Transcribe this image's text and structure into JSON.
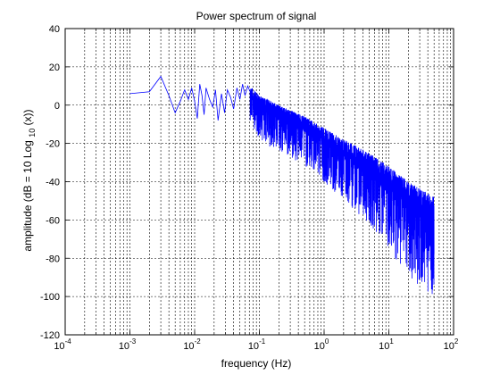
{
  "chart_data": {
    "type": "line",
    "title": "Power spectrum of signal",
    "xlabel": "frequency (Hz)",
    "ylabel_parts": [
      "amplitude (dB = 10 Log",
      "10",
      "(x))"
    ],
    "x_scale": "log",
    "xlim": [
      0.0001,
      100
    ],
    "ylim": [
      -120,
      40
    ],
    "x_ticks": [
      0.0001,
      0.001,
      0.01,
      0.1,
      1,
      10,
      100
    ],
    "x_tick_labels": [
      {
        "base": "10",
        "exp": "-4"
      },
      {
        "base": "10",
        "exp": "-3"
      },
      {
        "base": "10",
        "exp": "-2"
      },
      {
        "base": "10",
        "exp": "-1"
      },
      {
        "base": "10",
        "exp": "0"
      },
      {
        "base": "10",
        "exp": "1"
      },
      {
        "base": "10",
        "exp": "2"
      }
    ],
    "y_ticks": [
      -120,
      -100,
      -80,
      -60,
      -40,
      -20,
      0,
      20,
      40
    ],
    "y_tick_labels": [
      "-120",
      "-100",
      "-80",
      "-60",
      "-40",
      "-20",
      "0",
      "20",
      "40"
    ],
    "grid": true,
    "grid_style": "dashed",
    "line_color": "#0000ff",
    "series": [
      {
        "points": [
          [
            0.001,
            6
          ],
          [
            0.002,
            7
          ],
          [
            0.003,
            15
          ],
          [
            0.004,
            5
          ],
          [
            0.005,
            -4
          ],
          [
            0.006,
            2
          ],
          [
            0.007,
            8
          ],
          [
            0.008,
            3
          ],
          [
            0.009,
            9
          ],
          [
            0.01,
            2
          ],
          [
            0.011,
            -7
          ],
          [
            0.012,
            11
          ],
          [
            0.013,
            5
          ],
          [
            0.014,
            -5
          ],
          [
            0.015,
            9
          ],
          [
            0.017,
            3
          ],
          [
            0.019,
            -1
          ],
          [
            0.021,
            8
          ],
          [
            0.023,
            -8
          ],
          [
            0.026,
            6
          ],
          [
            0.029,
            -4
          ],
          [
            0.032,
            8
          ],
          [
            0.036,
            4
          ],
          [
            0.04,
            -2
          ],
          [
            0.045,
            9
          ],
          [
            0.05,
            3
          ],
          [
            0.055,
            11
          ],
          [
            0.06,
            5
          ],
          [
            0.066,
            10
          ],
          [
            0.072,
            7
          ]
        ],
        "envelope": {
          "x": [
            0.072,
            0.1,
            0.2,
            0.5,
            1,
            2,
            5,
            10,
            20,
            50
          ],
          "upper": [
            10,
            5,
            0,
            -6,
            -12,
            -18,
            -25,
            -32,
            -40,
            -48
          ],
          "lower": [
            -8,
            -18,
            -25,
            -32,
            -40,
            -50,
            -62,
            -75,
            -90,
            -100
          ]
        }
      }
    ]
  }
}
